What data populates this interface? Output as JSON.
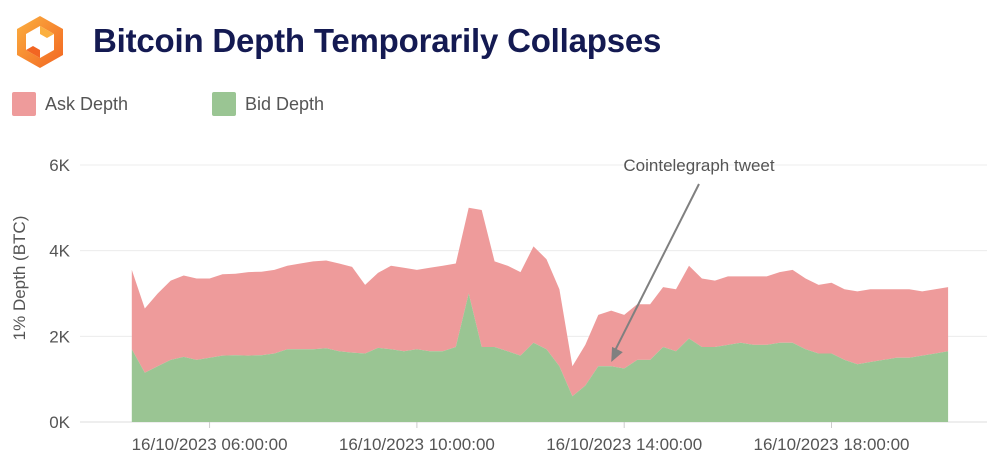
{
  "title": "Bitcoin Depth Temporarily Collapses",
  "logo_icon": "orange-hexagon-logo-icon",
  "colors": {
    "ask": "#ee9b9b",
    "bid": "#9ac593",
    "title": "#141a52",
    "logo": "#f7931a",
    "grid": "#ececec",
    "arrow": "#808080",
    "text": "#555555"
  },
  "chart_data": {
    "type": "area",
    "title": "Bitcoin Depth Temporarily Collapses",
    "ylabel": "1% Depth (BTC)",
    "xlabel": "",
    "ylim": [
      0,
      6000
    ],
    "xlim": [
      "16/10/2023 03:30:00",
      "16/10/2023 21:00:00"
    ],
    "grid": true,
    "legend_position": "top-left",
    "y_ticks": [
      {
        "value": 0,
        "label": "0K"
      },
      {
        "value": 2000,
        "label": "2K"
      },
      {
        "value": 4000,
        "label": "4K"
      },
      {
        "value": 6000,
        "label": "6K"
      }
    ],
    "x_ticks": [
      {
        "value": "16/10/2023 06:00:00",
        "label": "16/10/2023 06:00:00"
      },
      {
        "value": "16/10/2023 10:00:00",
        "label": "16/10/2023 10:00:00"
      },
      {
        "value": "16/10/2023 14:00:00",
        "label": "16/10/2023 14:00:00"
      },
      {
        "value": "16/10/2023 18:00:00",
        "label": "16/10/2023 18:00:00"
      }
    ],
    "x": [
      "16/10/2023 04:30:00",
      "16/10/2023 04:45:00",
      "16/10/2023 05:00:00",
      "16/10/2023 05:15:00",
      "16/10/2023 05:30:00",
      "16/10/2023 05:45:00",
      "16/10/2023 06:00:00",
      "16/10/2023 06:15:00",
      "16/10/2023 06:30:00",
      "16/10/2023 06:45:00",
      "16/10/2023 07:00:00",
      "16/10/2023 07:15:00",
      "16/10/2023 07:30:00",
      "16/10/2023 07:45:00",
      "16/10/2023 08:00:00",
      "16/10/2023 08:15:00",
      "16/10/2023 08:30:00",
      "16/10/2023 08:45:00",
      "16/10/2023 09:00:00",
      "16/10/2023 09:15:00",
      "16/10/2023 09:30:00",
      "16/10/2023 09:45:00",
      "16/10/2023 10:00:00",
      "16/10/2023 10:15:00",
      "16/10/2023 10:30:00",
      "16/10/2023 10:45:00",
      "16/10/2023 11:00:00",
      "16/10/2023 11:15:00",
      "16/10/2023 11:30:00",
      "16/10/2023 11:45:00",
      "16/10/2023 12:00:00",
      "16/10/2023 12:15:00",
      "16/10/2023 12:30:00",
      "16/10/2023 12:45:00",
      "16/10/2023 13:00:00",
      "16/10/2023 13:15:00",
      "16/10/2023 13:30:00",
      "16/10/2023 13:45:00",
      "16/10/2023 14:00:00",
      "16/10/2023 14:15:00",
      "16/10/2023 14:30:00",
      "16/10/2023 14:45:00",
      "16/10/2023 15:00:00",
      "16/10/2023 15:15:00",
      "16/10/2023 15:30:00",
      "16/10/2023 15:45:00",
      "16/10/2023 16:00:00",
      "16/10/2023 16:15:00",
      "16/10/2023 16:30:00",
      "16/10/2023 16:45:00",
      "16/10/2023 17:00:00",
      "16/10/2023 17:15:00",
      "16/10/2023 17:30:00",
      "16/10/2023 17:45:00",
      "16/10/2023 18:00:00",
      "16/10/2023 18:15:00",
      "16/10/2023 18:30:00",
      "16/10/2023 18:45:00",
      "16/10/2023 19:00:00",
      "16/10/2023 19:15:00",
      "16/10/2023 19:30:00",
      "16/10/2023 19:45:00",
      "16/10/2023 20:00:00",
      "16/10/2023 20:15:00"
    ],
    "series": [
      {
        "name": "Ask Depth",
        "color": "#ee9b9b",
        "values": [
          1850,
          1500,
          1700,
          1850,
          1900,
          1900,
          1850,
          1900,
          1900,
          1950,
          1950,
          1950,
          1950,
          2000,
          2050,
          2050,
          2050,
          2000,
          1600,
          1750,
          1950,
          1950,
          1850,
          1950,
          2000,
          1950,
          2000,
          3200,
          2000,
          2000,
          1950,
          2250,
          2100,
          1800,
          700,
          950,
          1200,
          1300,
          1250,
          1300,
          1300,
          1400,
          1450,
          1700,
          1600,
          1550,
          1600,
          1550,
          1600,
          1600,
          1650,
          1700,
          1650,
          1600,
          1650,
          1650,
          1700,
          1700,
          1650,
          1600,
          1600,
          1500,
          1500,
          1500
        ]
      },
      {
        "name": "Bid Depth",
        "color": "#9ac593",
        "values": [
          1700,
          1150,
          1300,
          1450,
          1520,
          1450,
          1500,
          1550,
          1560,
          1550,
          1560,
          1600,
          1700,
          1700,
          1700,
          1720,
          1650,
          1620,
          1600,
          1730,
          1700,
          1650,
          1700,
          1650,
          1650,
          1750,
          3000,
          1750,
          1750,
          1650,
          1550,
          1850,
          1700,
          1300,
          600,
          850,
          1300,
          1300,
          1250,
          1450,
          1450,
          1750,
          1650,
          1950,
          1750,
          1750,
          1800,
          1850,
          1800,
          1800,
          1850,
          1850,
          1700,
          1600,
          1600,
          1450,
          1350,
          1400,
          1450,
          1500,
          1500,
          1550,
          1600,
          1650
        ]
      }
    ],
    "annotations": [
      {
        "text": "Cointelegraph tweet",
        "arrow_to": {
          "x": "16/10/2023 13:45:00",
          "y": 1400
        }
      }
    ]
  }
}
